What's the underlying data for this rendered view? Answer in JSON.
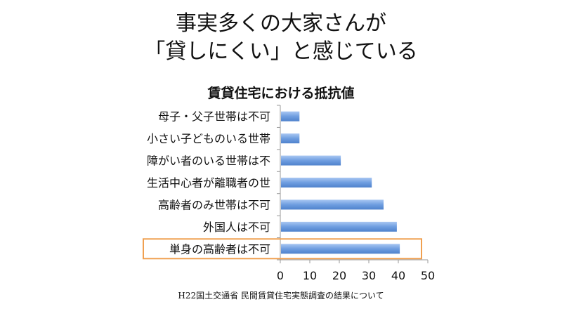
{
  "slide": {
    "headline_line1": "事実多くの大家さんが",
    "headline_line2": "「貸しにくい」と感じている",
    "source": "H22国土交通省 民間賃貸住宅実態調査の結果について"
  },
  "colors": {
    "bar": "#6f9ee0",
    "highlight_box": "#f0a050",
    "axis": "#9a9a9a"
  },
  "chart_data": {
    "type": "bar",
    "orientation": "horizontal",
    "title": "賃貸住宅における抵抗値",
    "categories": [
      "母子・父子世帯は不可",
      "小さい子どものいる世帯",
      "障がい者のいる世帯は不",
      "生活中心者が離職者の世",
      "高齢者のみ世帯は不可",
      "外国人は不可",
      "単身の高齢者は不可"
    ],
    "values": [
      6.5,
      6.5,
      20.5,
      31,
      35,
      39.5,
      40.5
    ],
    "xlim": [
      0,
      50
    ],
    "xticks": [
      0,
      10,
      20,
      30,
      40,
      50
    ],
    "grid": false,
    "highlighted_category": "単身の高齢者は不可"
  }
}
